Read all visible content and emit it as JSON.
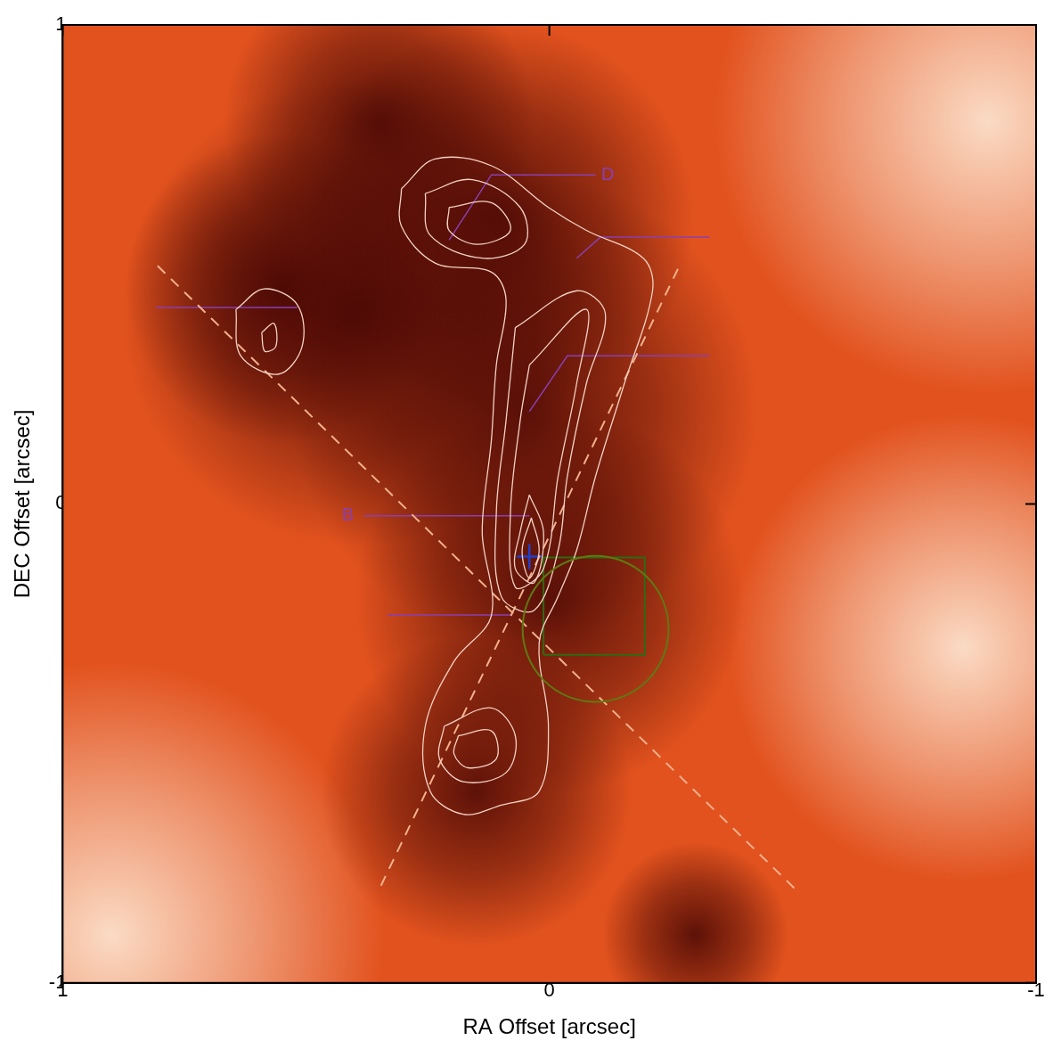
{
  "chart_data": {
    "type": "contour",
    "x_label": "RA Offset [arcsec]",
    "y_label": "DEC Offset [arcsec]",
    "xlim": [
      1,
      -1
    ],
    "ylim": [
      -1,
      1
    ],
    "xticks": [
      1,
      0,
      -1
    ],
    "yticks": [
      -1,
      0,
      1
    ],
    "grid": false,
    "image": {
      "dark": [
        [
          0.4,
          0.4,
          0.3
        ],
        [
          0.1,
          0.6,
          0.25
        ],
        [
          0.05,
          0.2,
          0.3
        ],
        [
          0.0,
          -0.2,
          0.25
        ],
        [
          0.15,
          -0.6,
          0.2
        ],
        [
          -0.3,
          -0.9,
          0.12
        ],
        [
          0.35,
          0.8,
          0.2
        ],
        [
          0.55,
          0.45,
          0.2
        ]
      ],
      "light": [
        [
          0.9,
          -0.9,
          0.35
        ],
        [
          -0.9,
          0.8,
          0.35
        ],
        [
          -0.85,
          -0.3,
          0.3
        ]
      ]
    },
    "contour_color": "#f3d2c4",
    "contours": [
      [
        [
          0.304,
          0.658
        ],
        [
          0.235,
          0.72
        ],
        [
          0.119,
          0.706
        ],
        [
          0.002,
          0.619
        ],
        [
          -0.076,
          0.571
        ],
        [
          -0.193,
          0.513
        ],
        [
          -0.212,
          0.445
        ],
        [
          -0.154,
          0.251
        ],
        [
          -0.095,
          0.058
        ],
        [
          -0.056,
          -0.097
        ],
        [
          -0.018,
          -0.193
        ],
        [
          0.021,
          -0.29
        ],
        [
          0.002,
          -0.464
        ],
        [
          0.021,
          -0.6
        ],
        [
          0.099,
          -0.629
        ],
        [
          0.177,
          -0.648
        ],
        [
          0.245,
          -0.6
        ],
        [
          0.255,
          -0.464
        ],
        [
          0.196,
          -0.329
        ],
        [
          0.119,
          -0.232
        ],
        [
          0.138,
          -0.058
        ],
        [
          0.119,
          0.135
        ],
        [
          0.109,
          0.29
        ],
        [
          0.089,
          0.426
        ],
        [
          0.119,
          0.484
        ],
        [
          0.235,
          0.503
        ],
        [
          0.304,
          0.58
        ]
      ],
      [
        [
          0.255,
          0.648
        ],
        [
          0.158,
          0.677
        ],
        [
          0.06,
          0.619
        ],
        [
          0.051,
          0.542
        ],
        [
          0.138,
          0.513
        ],
        [
          0.245,
          0.561
        ]
      ],
      [
        [
          0.206,
          0.619
        ],
        [
          0.119,
          0.629
        ],
        [
          0.08,
          0.571
        ],
        [
          0.148,
          0.542
        ],
        [
          0.206,
          0.571
        ]
      ],
      [
        [
          0.07,
          0.368
        ],
        [
          -0.056,
          0.445
        ],
        [
          -0.115,
          0.397
        ],
        [
          -0.076,
          0.251
        ],
        [
          -0.037,
          0.058
        ],
        [
          -0.018,
          -0.097
        ],
        [
          0.031,
          -0.222
        ],
        [
          0.099,
          -0.193
        ],
        [
          0.109,
          -0.019
        ],
        [
          0.089,
          0.174
        ]
      ],
      [
        [
          0.041,
          0.29
        ],
        [
          -0.076,
          0.406
        ],
        [
          -0.056,
          0.251
        ],
        [
          -0.018,
          0.058
        ],
        [
          0.012,
          -0.135
        ],
        [
          0.07,
          -0.174
        ],
        [
          0.08,
          -0.019
        ],
        [
          0.06,
          0.174
        ]
      ],
      [
        [
          0.041,
          0.019
        ],
        [
          0.012,
          -0.058
        ],
        [
          0.031,
          -0.164
        ],
        [
          0.07,
          -0.135
        ],
        [
          0.06,
          -0.058
        ]
      ],
      [
        [
          0.037,
          -0.029
        ],
        [
          0.021,
          -0.097
        ],
        [
          0.041,
          -0.155
        ],
        [
          0.056,
          -0.097
        ]
      ],
      [
        [
          0.216,
          -0.464
        ],
        [
          0.119,
          -0.426
        ],
        [
          0.07,
          -0.484
        ],
        [
          0.089,
          -0.561
        ],
        [
          0.177,
          -0.58
        ],
        [
          0.226,
          -0.532
        ]
      ],
      [
        [
          0.187,
          -0.484
        ],
        [
          0.119,
          -0.474
        ],
        [
          0.109,
          -0.532
        ],
        [
          0.167,
          -0.551
        ],
        [
          0.196,
          -0.522
        ]
      ],
      [
        [
          0.644,
          0.406
        ],
        [
          0.586,
          0.449
        ],
        [
          0.518,
          0.416
        ],
        [
          0.508,
          0.329
        ],
        [
          0.556,
          0.271
        ],
        [
          0.634,
          0.309
        ]
      ],
      [
        [
          0.591,
          0.358
        ],
        [
          0.566,
          0.377
        ],
        [
          0.562,
          0.329
        ],
        [
          0.585,
          0.319
        ]
      ]
    ],
    "lines": [
      {
        "points": [
          [
            0.805,
            0.497
          ],
          [
            -0.504,
            -0.803
          ]
        ],
        "color": "#f2b08c",
        "line_style": "dashed"
      },
      {
        "points": [
          [
            0.346,
            -0.797
          ],
          [
            -0.27,
            0.503
          ]
        ],
        "color": "#f2b08c",
        "line_style": "dashed"
      }
    ],
    "annotation_color": "#8a3fb0",
    "annotations": [
      {
        "label": "D",
        "label_at": [
          -0.12,
          0.687
        ],
        "points": [
          [
            0.206,
            0.551
          ],
          [
            0.119,
            0.687
          ],
          [
            -0.095,
            0.687
          ]
        ]
      },
      {
        "points": [
          [
            -0.056,
            0.513
          ],
          [
            -0.105,
            0.557
          ],
          [
            -0.329,
            0.557
          ]
        ]
      },
      {
        "points": [
          [
            0.809,
            0.41
          ],
          [
            0.518,
            0.41
          ]
        ]
      },
      {
        "points": [
          [
            0.041,
            0.193
          ],
          [
            -0.037,
            0.309
          ],
          [
            -0.329,
            0.309
          ]
        ]
      },
      {
        "label": "B",
        "label_at": [
          0.414,
          -0.025
        ],
        "points": [
          [
            0.381,
            -0.025
          ],
          [
            0.041,
            -0.025
          ]
        ]
      },
      {
        "points": [
          [
            0.333,
            -0.232
          ],
          [
            0.08,
            -0.232
          ]
        ]
      }
    ],
    "circle": {
      "x": -0.095,
      "y": -0.261,
      "r": 0.15,
      "color": "#5f7a12"
    },
    "square": {
      "xlim": [
        0.012,
        -0.196
      ],
      "ylim": [
        -0.315,
        -0.112
      ],
      "color": "#2f6a12"
    },
    "marker_point": {
      "x": 0.041,
      "y": -0.11,
      "color": "#2040c8",
      "marker": "cross"
    }
  }
}
